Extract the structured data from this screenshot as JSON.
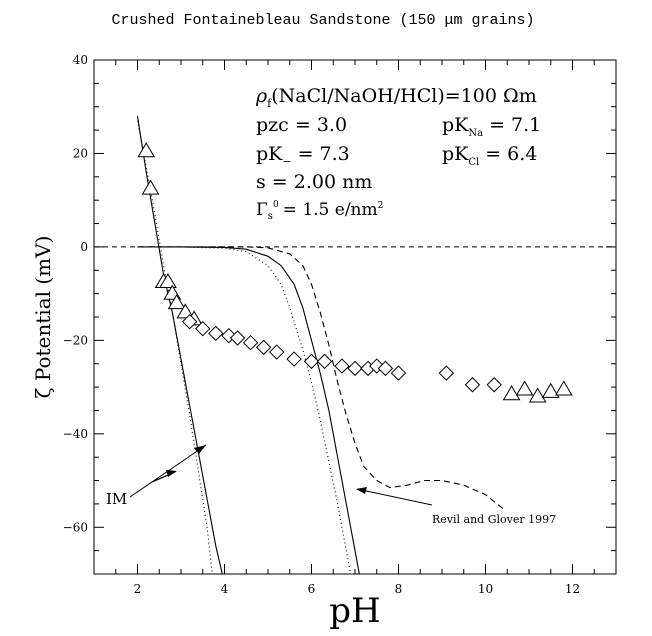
{
  "chart_data": {
    "type": "scatter",
    "title": "Crushed Fontainebleau Sandstone (150 μm grains)",
    "xlabel": "pH",
    "ylabel": "ζ Potential (mV)",
    "xlim": [
      1,
      13
    ],
    "ylim": [
      -70,
      40
    ],
    "xticks": [
      2,
      4,
      6,
      8,
      10,
      12
    ],
    "yticks": [
      -60,
      -40,
      -20,
      0,
      20,
      40
    ],
    "grid": false,
    "parameters": {
      "rho_prefix": "ρ",
      "rho_sub": "f",
      "rho_rest": "(NaCl/NaOH/HCl)=100  Ωm",
      "pzc": "pzc = 3.0",
      "pKminus_label": "pK",
      "pKminus_sub": "−",
      "pKminus_value": "=   7.3",
      "pKNa_label": "pK",
      "pKNa_sub": "Na",
      "pKNa_value": "=   7.1",
      "pKCl_label": "pK",
      "pKCl_sub": "Cl",
      "pKCl_value": "=   6.4",
      "s": "s = 2.00 nm",
      "gamma_label": "Γ",
      "gamma_sub": "s",
      "gamma_sup": "0",
      "gamma_value": "=   1.5 e/nm",
      "gamma_unit_sup": "2"
    },
    "annotations": [
      {
        "text": "IM"
      },
      {
        "text": "Revil and Glover 1997"
      }
    ],
    "series": [
      {
        "marker": "triangle",
        "points": [
          [
            2.2,
            20.5
          ],
          [
            2.3,
            12.5
          ],
          [
            2.6,
            -7.5
          ],
          [
            2.7,
            -7.5
          ],
          [
            2.8,
            -10
          ],
          [
            2.9,
            -12
          ],
          [
            3.1,
            -14
          ],
          [
            3.3,
            -15.5
          ],
          [
            10.6,
            -31.5
          ],
          [
            10.9,
            -30.5
          ],
          [
            11.2,
            -32
          ],
          [
            11.5,
            -31
          ],
          [
            11.8,
            -30.5
          ]
        ]
      },
      {
        "marker": "diamond",
        "points": [
          [
            3.2,
            -16
          ],
          [
            3.5,
            -17.5
          ],
          [
            3.8,
            -18.5
          ],
          [
            4.1,
            -19
          ],
          [
            4.3,
            -19.5
          ],
          [
            4.6,
            -20.5
          ],
          [
            4.9,
            -21.5
          ],
          [
            5.2,
            -22.5
          ],
          [
            5.6,
            -24
          ],
          [
            6.0,
            -24.5
          ],
          [
            6.3,
            -24.5
          ],
          [
            6.7,
            -25.5
          ],
          [
            7.0,
            -26
          ],
          [
            7.3,
            -26
          ],
          [
            7.5,
            -25.5
          ],
          [
            7.7,
            -26
          ],
          [
            8.0,
            -27
          ],
          [
            9.1,
            -27
          ],
          [
            9.7,
            -29.5
          ],
          [
            10.2,
            -29.5
          ]
        ]
      },
      {
        "style": "solid",
        "points": [
          [
            2.0,
            28
          ],
          [
            2.2,
            16
          ],
          [
            2.4,
            5
          ],
          [
            2.6,
            -6
          ],
          [
            2.8,
            -14
          ],
          [
            3.0,
            -24
          ],
          [
            3.2,
            -34
          ],
          [
            3.4,
            -44
          ],
          [
            3.6,
            -54
          ],
          [
            3.8,
            -64
          ],
          [
            3.95,
            -70
          ]
        ]
      },
      {
        "style": "dotted",
        "points": [
          [
            2.0,
            27
          ],
          [
            2.2,
            17
          ],
          [
            2.4,
            7
          ],
          [
            2.6,
            -4
          ],
          [
            2.8,
            -14
          ],
          [
            3.0,
            -25
          ],
          [
            3.2,
            -36
          ],
          [
            3.4,
            -48
          ],
          [
            3.6,
            -60
          ],
          [
            3.72,
            -70
          ]
        ]
      },
      {
        "style": "solid",
        "points": [
          [
            2.0,
            0
          ],
          [
            3.0,
            0
          ],
          [
            4.0,
            -0.1
          ],
          [
            4.5,
            -0.5
          ],
          [
            5.0,
            -2
          ],
          [
            5.3,
            -4
          ],
          [
            5.6,
            -8
          ],
          [
            5.8,
            -13
          ],
          [
            6.0,
            -20
          ],
          [
            6.2,
            -27
          ],
          [
            6.4,
            -35
          ],
          [
            6.6,
            -45
          ],
          [
            6.8,
            -55
          ],
          [
            7.0,
            -65
          ],
          [
            7.1,
            -70
          ]
        ]
      },
      {
        "style": "dotted",
        "points": [
          [
            2.0,
            0
          ],
          [
            3.0,
            0
          ],
          [
            4.0,
            -0.3
          ],
          [
            4.5,
            -1
          ],
          [
            5.0,
            -4
          ],
          [
            5.3,
            -8
          ],
          [
            5.5,
            -13
          ],
          [
            5.8,
            -22
          ],
          [
            6.0,
            -29
          ],
          [
            6.2,
            -37
          ],
          [
            6.4,
            -46
          ],
          [
            6.6,
            -55
          ],
          [
            6.8,
            -65
          ],
          [
            6.9,
            -70
          ]
        ]
      },
      {
        "style": "dashed",
        "points": [
          [
            2.0,
            0
          ],
          [
            4.5,
            0
          ],
          [
            5.0,
            -0.2
          ],
          [
            5.5,
            -1.5
          ],
          [
            5.8,
            -4
          ],
          [
            6.0,
            -8
          ],
          [
            6.2,
            -14
          ],
          [
            6.4,
            -21
          ],
          [
            6.6,
            -29
          ],
          [
            6.8,
            -36
          ],
          [
            7.0,
            -42
          ],
          [
            7.2,
            -47
          ],
          [
            7.5,
            -50
          ],
          [
            7.8,
            -51.5
          ],
          [
            8.2,
            -51
          ],
          [
            8.6,
            -50
          ],
          [
            9.0,
            -50
          ],
          [
            9.5,
            -51
          ],
          [
            10.0,
            -53
          ],
          [
            10.4,
            -56
          ]
        ]
      }
    ]
  }
}
